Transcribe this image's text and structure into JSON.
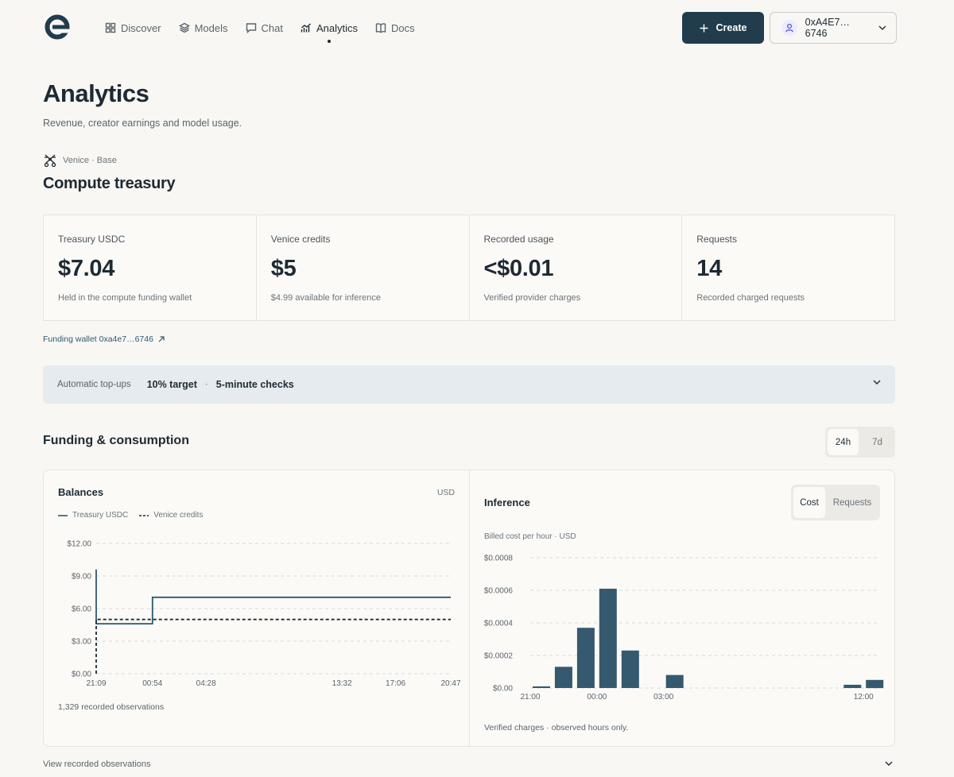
{
  "nav": {
    "items": [
      {
        "label": "Discover",
        "icon": "grid-icon"
      },
      {
        "label": "Models",
        "icon": "layers-icon"
      },
      {
        "label": "Chat",
        "icon": "chat-icon"
      },
      {
        "label": "Analytics",
        "icon": "analytics-icon",
        "active": true
      },
      {
        "label": "Docs",
        "icon": "book-icon"
      }
    ],
    "create_label": "Create",
    "wallet_label": "0xA4E7…6746"
  },
  "header": {
    "title": "Analytics",
    "subtitle": "Revenue, creator earnings and model usage.",
    "provider": "Venice · Base",
    "section": "Compute treasury"
  },
  "stats": [
    {
      "label": "Treasury USDC",
      "value": "$7.04",
      "note": "Held in the compute funding wallet"
    },
    {
      "label": "Venice credits",
      "value": "$5",
      "note": "$4.99 available for inference"
    },
    {
      "label": "Recorded usage",
      "value": "<$0.01",
      "note": "Verified provider charges"
    },
    {
      "label": "Requests",
      "value": "14",
      "note": "Recorded charged requests"
    }
  ],
  "funding_link": "Funding wallet 0xa4e7…6746",
  "topups": {
    "label": "Automatic top-ups",
    "target": "10% target",
    "sep": "·",
    "checks": "5-minute checks"
  },
  "funding": {
    "title": "Funding & consumption",
    "ranges": [
      "24h",
      "7d"
    ],
    "active_range": "24h"
  },
  "balances": {
    "title": "Balances",
    "unit": "USD",
    "legend": [
      "Treasury USDC",
      "Venice credits"
    ],
    "note": "1,329 recorded observations"
  },
  "inference": {
    "title": "Inference",
    "toggle": [
      "Cost",
      "Requests"
    ],
    "subtitle": "Billed cost per hour · USD",
    "note": "Verified charges · observed hours only."
  },
  "view_observations": "View recorded observations",
  "colors": {
    "accent": "#213c4c",
    "series": "#2e5870",
    "bar": "#35596e"
  },
  "chart_data": [
    {
      "type": "line",
      "title": "Balances",
      "y_tick_labels": [
        "$0.00",
        "$3.00",
        "$6.00",
        "$9.00",
        "$12.00"
      ],
      "x_tick_labels": [
        "21:09",
        "00:54",
        "04:28",
        "13:32",
        "17:06",
        "20:47"
      ],
      "ylim": [
        0,
        12
      ],
      "grid": true,
      "series": [
        {
          "name": "Treasury USDC",
          "style": "solid",
          "points": [
            [
              0,
              9.6
            ],
            [
              0,
              4.6
            ],
            [
              3.75,
              4.6
            ],
            [
              3.75,
              7.04
            ],
            [
              23.63,
              7.04
            ]
          ]
        },
        {
          "name": "Venice credits",
          "style": "dashed",
          "points": [
            [
              0,
              0
            ],
            [
              0,
              5.0
            ],
            [
              23.63,
              5.0
            ]
          ]
        }
      ]
    },
    {
      "type": "bar",
      "title": "Inference",
      "y_tick_labels": [
        "$0.00",
        "$0.0002",
        "$0.0004",
        "$0.0006",
        "$0.0008"
      ],
      "x_tick_labels": [
        "21:00",
        "00:00",
        "03:00",
        "12:00"
      ],
      "ylim": [
        0,
        0.0008
      ],
      "grid": true,
      "categories": [
        "21:00",
        "22:00",
        "23:00",
        "00:00",
        "01:00",
        "03:00",
        "11:00",
        "12:00"
      ],
      "values": [
        1e-05,
        0.00013,
        0.00037,
        0.00061,
        0.00023,
        8e-05,
        2e-05,
        5e-05
      ]
    }
  ]
}
